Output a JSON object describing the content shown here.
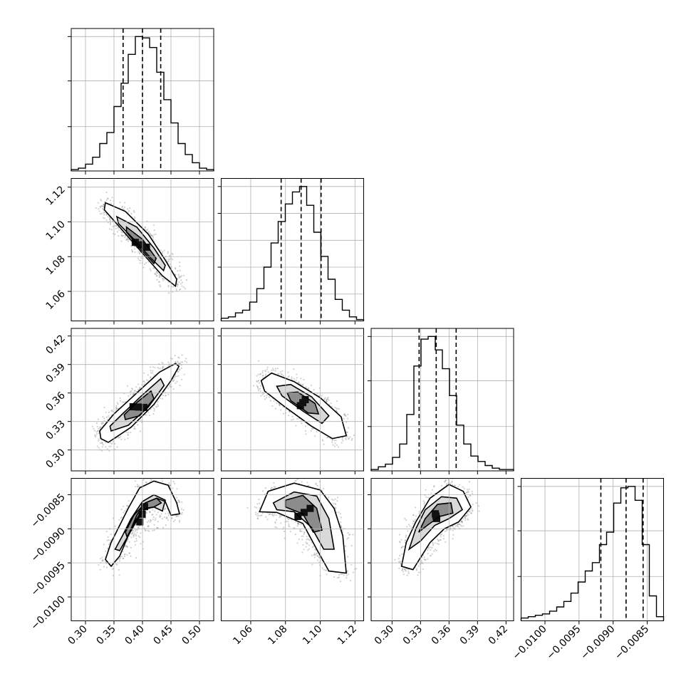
{
  "chart_data": {
    "type": "corner",
    "grid": true,
    "parameters": [
      {
        "index": 0,
        "range": [
          0.275,
          0.525
        ],
        "ticks": [
          0.3,
          0.35,
          0.4,
          0.45,
          0.5
        ],
        "tick_labels": [
          "0.30",
          "0.35",
          "0.40",
          "0.45",
          "0.50"
        ],
        "mean": 0.4,
        "sd": 0.032,
        "quantiles": [
          0.366,
          0.4,
          0.432
        ]
      },
      {
        "index": 1,
        "range": [
          1.043,
          1.125
        ],
        "ticks": [
          1.06,
          1.08,
          1.1,
          1.12
        ],
        "tick_labels": [
          "1.06",
          "1.08",
          "1.10",
          "1.12"
        ],
        "mean": 1.089,
        "sd": 0.011,
        "quantiles": [
          1.0775,
          1.089,
          1.1005
        ]
      },
      {
        "index": 2,
        "range": [
          0.278,
          0.428
        ],
        "ticks": [
          0.3,
          0.33,
          0.36,
          0.39,
          0.42
        ],
        "tick_labels": [
          "0.30",
          "0.33",
          "0.36",
          "0.39",
          "0.42"
        ],
        "mean": 0.346,
        "sd": 0.018,
        "quantiles": [
          0.3285,
          0.3465,
          0.3675
        ]
      },
      {
        "index": 3,
        "range": [
          -0.01035,
          -0.00826
        ],
        "ticks": [
          -0.01,
          -0.0095,
          -0.009,
          -0.0085
        ],
        "tick_labels": [
          "−0.0100",
          "−0.0095",
          "−0.0090",
          "−0.0085"
        ],
        "mean": -0.0088,
        "sd": 0.0003,
        "quantiles": [
          -0.00918,
          -0.00881,
          -0.00856
        ]
      }
    ],
    "histograms": [
      {
        "param": 0,
        "max_ticks": [
          0.33,
          0.67,
          1.0
        ],
        "counts": [
          0.01,
          0.02,
          0.05,
          0.1,
          0.2,
          0.28,
          0.47,
          0.64,
          0.85,
          0.98,
          0.97,
          0.9,
          0.72,
          0.52,
          0.35,
          0.2,
          0.12,
          0.06,
          0.02,
          0.01
        ]
      },
      {
        "param": 1,
        "max_ticks": [
          0.2,
          0.4,
          0.6,
          0.8,
          1.0
        ],
        "counts": [
          0.02,
          0.03,
          0.06,
          0.08,
          0.14,
          0.24,
          0.4,
          0.58,
          0.74,
          0.87,
          0.96,
          1.0,
          0.86,
          0.66,
          0.48,
          0.31,
          0.16,
          0.08,
          0.03,
          0.01
        ]
      },
      {
        "param": 2,
        "max_ticks": [
          0.33,
          0.67,
          1.0
        ],
        "counts": [
          0.01,
          0.03,
          0.05,
          0.1,
          0.2,
          0.42,
          0.78,
          0.98,
          1.0,
          0.9,
          0.76,
          0.56,
          0.34,
          0.2,
          0.11,
          0.07,
          0.04,
          0.02,
          0.01,
          0.01
        ]
      },
      {
        "param": 3,
        "max_ticks": [
          0.33,
          0.67,
          1.0
        ],
        "counts": [
          0.02,
          0.03,
          0.04,
          0.05,
          0.07,
          0.1,
          0.14,
          0.2,
          0.28,
          0.36,
          0.42,
          0.55,
          0.64,
          0.85,
          0.96,
          0.97,
          0.87,
          0.55,
          0.18,
          0.03
        ]
      }
    ],
    "pairs": [
      {
        "x": 0,
        "y": 1,
        "contours": [
          [
            [
              0.335,
              1.111
            ],
            [
              0.37,
              1.106
            ],
            [
              0.41,
              1.093
            ],
            [
              0.44,
              1.078
            ],
            [
              0.46,
              1.067
            ],
            [
              0.458,
              1.063
            ],
            [
              0.435,
              1.069
            ],
            [
              0.4,
              1.082
            ],
            [
              0.36,
              1.097
            ],
            [
              0.333,
              1.107
            ]
          ],
          [
            [
              0.355,
              1.103
            ],
            [
              0.39,
              1.097
            ],
            [
              0.42,
              1.085
            ],
            [
              0.44,
              1.075
            ],
            [
              0.437,
              1.072
            ],
            [
              0.415,
              1.079
            ],
            [
              0.385,
              1.09
            ],
            [
              0.358,
              1.099
            ]
          ],
          [
            [
              0.372,
              1.097
            ],
            [
              0.4,
              1.09
            ],
            [
              0.424,
              1.079
            ],
            [
              0.42,
              1.076
            ],
            [
              0.395,
              1.085
            ],
            [
              0.372,
              1.094
            ]
          ]
        ]
      },
      {
        "x": 0,
        "y": 2,
        "contours": [
          [
            [
              0.327,
              0.312
            ],
            [
              0.34,
              0.308
            ],
            [
              0.38,
              0.324
            ],
            [
              0.42,
              0.348
            ],
            [
              0.45,
              0.373
            ],
            [
              0.464,
              0.388
            ],
            [
              0.458,
              0.391
            ],
            [
              0.43,
              0.382
            ],
            [
              0.39,
              0.36
            ],
            [
              0.35,
              0.338
            ],
            [
              0.325,
              0.32
            ]
          ],
          [
            [
              0.345,
              0.32
            ],
            [
              0.375,
              0.326
            ],
            [
              0.41,
              0.345
            ],
            [
              0.438,
              0.368
            ],
            [
              0.432,
              0.375
            ],
            [
              0.4,
              0.358
            ],
            [
              0.365,
              0.338
            ],
            [
              0.343,
              0.325
            ]
          ],
          [
            [
              0.37,
              0.332
            ],
            [
              0.395,
              0.336
            ],
            [
              0.42,
              0.354
            ],
            [
              0.415,
              0.362
            ],
            [
              0.39,
              0.35
            ],
            [
              0.368,
              0.337
            ]
          ]
        ]
      },
      {
        "x": 0,
        "y": 3,
        "contours": [
          [
            [
              0.335,
              -0.00945
            ],
            [
              0.345,
              -0.0092
            ],
            [
              0.36,
              -0.00895
            ],
            [
              0.375,
              -0.0087
            ],
            [
              0.395,
              -0.0084
            ],
            [
              0.42,
              -0.0083
            ],
            [
              0.445,
              -0.00836
            ],
            [
              0.46,
              -0.00862
            ],
            [
              0.465,
              -0.00878
            ],
            [
              0.45,
              -0.0088
            ],
            [
              0.44,
              -0.0086
            ],
            [
              0.425,
              -0.00855
            ],
            [
              0.405,
              -0.00862
            ],
            [
              0.39,
              -0.0088
            ],
            [
              0.375,
              -0.0091
            ],
            [
              0.36,
              -0.0094
            ],
            [
              0.345,
              -0.00955
            ]
          ],
          [
            [
              0.352,
              -0.0093
            ],
            [
              0.365,
              -0.0091
            ],
            [
              0.38,
              -0.00885
            ],
            [
              0.4,
              -0.0086
            ],
            [
              0.42,
              -0.0085
            ],
            [
              0.44,
              -0.00858
            ],
            [
              0.435,
              -0.00874
            ],
            [
              0.42,
              -0.00868
            ],
            [
              0.405,
              -0.0087
            ],
            [
              0.39,
              -0.00888
            ],
            [
              0.375,
              -0.0091
            ],
            [
              0.36,
              -0.00932
            ]
          ],
          [
            [
              0.37,
              -0.00905
            ],
            [
              0.385,
              -0.0088
            ],
            [
              0.405,
              -0.00862
            ],
            [
              0.425,
              -0.00855
            ],
            [
              0.433,
              -0.00862
            ],
            [
              0.42,
              -0.00868
            ],
            [
              0.4,
              -0.00872
            ],
            [
              0.385,
              -0.00892
            ],
            [
              0.373,
              -0.00912
            ]
          ]
        ]
      },
      {
        "x": 1,
        "y": 2,
        "contours": [
          [
            [
              1.066,
              0.373
            ],
            [
              1.072,
              0.381
            ],
            [
              1.085,
              0.372
            ],
            [
              1.1,
              0.355
            ],
            [
              1.112,
              0.335
            ],
            [
              1.115,
              0.315
            ],
            [
              1.107,
              0.312
            ],
            [
              1.095,
              0.325
            ],
            [
              1.08,
              0.345
            ],
            [
              1.068,
              0.362
            ]
          ],
          [
            [
              1.075,
              0.367
            ],
            [
              1.083,
              0.369
            ],
            [
              1.095,
              0.356
            ],
            [
              1.105,
              0.336
            ],
            [
              1.101,
              0.328
            ],
            [
              1.09,
              0.341
            ],
            [
              1.078,
              0.357
            ]
          ],
          [
            [
              1.081,
              0.36
            ],
            [
              1.087,
              0.361
            ],
            [
              1.097,
              0.349
            ],
            [
              1.099,
              0.338
            ],
            [
              1.093,
              0.339
            ],
            [
              1.083,
              0.352
            ]
          ]
        ]
      },
      {
        "x": 1,
        "y": 3,
        "contours": [
          [
            [
              1.065,
              -0.00875
            ],
            [
              1.07,
              -0.00845
            ],
            [
              1.085,
              -0.00833
            ],
            [
              1.1,
              -0.00843
            ],
            [
              1.108,
              -0.0087
            ],
            [
              1.113,
              -0.0091
            ],
            [
              1.115,
              -0.00965
            ],
            [
              1.105,
              -0.00962
            ],
            [
              1.098,
              -0.0093
            ],
            [
              1.09,
              -0.00892
            ],
            [
              1.075,
              -0.00876
            ]
          ],
          [
            [
              1.073,
              -0.00862
            ],
            [
              1.085,
              -0.00846
            ],
            [
              1.098,
              -0.00852
            ],
            [
              1.105,
              -0.00885
            ],
            [
              1.108,
              -0.0093
            ],
            [
              1.102,
              -0.0093
            ],
            [
              1.095,
              -0.00898
            ],
            [
              1.085,
              -0.00875
            ],
            [
              1.075,
              -0.00872
            ]
          ],
          [
            [
              1.08,
              -0.00858
            ],
            [
              1.09,
              -0.00851
            ],
            [
              1.098,
              -0.0087
            ],
            [
              1.101,
              -0.00902
            ],
            [
              1.096,
              -0.00905
            ],
            [
              1.09,
              -0.00878
            ],
            [
              1.08,
              -0.00868
            ]
          ]
        ]
      },
      {
        "x": 2,
        "y": 3,
        "contours": [
          [
            [
              0.31,
              -0.00955
            ],
            [
              0.315,
              -0.0092
            ],
            [
              0.325,
              -0.0089
            ],
            [
              0.34,
              -0.00855
            ],
            [
              0.36,
              -0.00835
            ],
            [
              0.375,
              -0.00845
            ],
            [
              0.383,
              -0.00868
            ],
            [
              0.37,
              -0.0089
            ],
            [
              0.355,
              -0.009
            ],
            [
              0.34,
              -0.0092
            ],
            [
              0.322,
              -0.0096
            ]
          ],
          [
            [
              0.318,
              -0.0093
            ],
            [
              0.325,
              -0.009
            ],
            [
              0.335,
              -0.00872
            ],
            [
              0.352,
              -0.00853
            ],
            [
              0.368,
              -0.00855
            ],
            [
              0.374,
              -0.00872
            ],
            [
              0.36,
              -0.00885
            ],
            [
              0.345,
              -0.00895
            ],
            [
              0.33,
              -0.00918
            ]
          ],
          [
            [
              0.328,
              -0.00905
            ],
            [
              0.335,
              -0.00885
            ],
            [
              0.348,
              -0.00864
            ],
            [
              0.362,
              -0.00862
            ],
            [
              0.364,
              -0.00877
            ],
            [
              0.35,
              -0.00882
            ],
            [
              0.337,
              -0.00895
            ]
          ]
        ]
      }
    ]
  }
}
